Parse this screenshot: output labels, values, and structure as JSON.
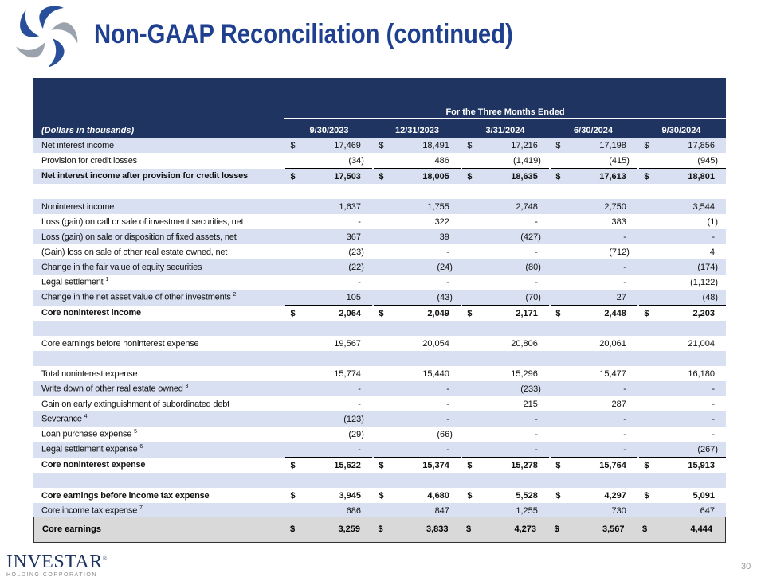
{
  "title": "Non-GAAP Reconciliation (continued)",
  "logo_text": "Investar logo",
  "header": {
    "span_title": "For the Three Months Ended",
    "units": "(Dollars in thousands)",
    "dates": [
      "9/30/2023",
      "12/31/2023",
      "3/31/2024",
      "6/30/2024",
      "9/30/2024"
    ]
  },
  "rows": [
    {
      "label": "Net interest income",
      "dollar": true,
      "values": [
        "17,469",
        "18,491",
        "17,216",
        "17,198",
        "17,856"
      ]
    },
    {
      "label": "Provision for credit losses",
      "values": [
        "(34)",
        "486",
        "(1,419)",
        "(415)",
        "(945)"
      ]
    },
    {
      "label": "Net interest income after provision for credit losses",
      "bold": true,
      "dollar": true,
      "topline": true,
      "values": [
        "17,503",
        "18,005",
        "18,635",
        "17,613",
        "18,801"
      ]
    },
    {
      "label": "",
      "values": [
        "",
        "",
        "",
        "",
        ""
      ]
    },
    {
      "label": "Noninterest income",
      "values": [
        "1,637",
        "1,755",
        "2,748",
        "2,750",
        "3,544"
      ]
    },
    {
      "label": "Loss (gain) on call or sale of investment securities, net",
      "values": [
        "-",
        "322",
        "-",
        "383",
        "(1)"
      ]
    },
    {
      "label": "Loss (gain) on sale or disposition of fixed assets, net",
      "values": [
        "367",
        "39",
        "(427)",
        "-",
        "-"
      ]
    },
    {
      "label": "(Gain) loss on sale of other real estate owned, net",
      "values": [
        "(23)",
        "-",
        "-",
        "(712)",
        "4"
      ]
    },
    {
      "label": "Change in the fair value of equity securities",
      "values": [
        "(22)",
        "(24)",
        "(80)",
        "-",
        "(174)"
      ]
    },
    {
      "label": "Legal settlement",
      "sup": "1",
      "values": [
        "-",
        "-",
        "-",
        "-",
        "(1,122)"
      ]
    },
    {
      "label": "Change in the net asset value of other investments",
      "sup": "2",
      "values": [
        "105",
        "(43)",
        "(70)",
        "27",
        "(48)"
      ]
    },
    {
      "label": "Core noninterest income",
      "bold": true,
      "dollar": true,
      "topline": true,
      "values": [
        "2,064",
        "2,049",
        "2,171",
        "2,448",
        "2,203"
      ]
    },
    {
      "label": "",
      "values": [
        "",
        "",
        "",
        "",
        ""
      ]
    },
    {
      "label": "Core earnings before noninterest expense",
      "values": [
        "19,567",
        "20,054",
        "20,806",
        "20,061",
        "21,004"
      ]
    },
    {
      "label": "",
      "values": [
        "",
        "",
        "",
        "",
        ""
      ]
    },
    {
      "label": "Total noninterest expense",
      "values": [
        "15,774",
        "15,440",
        "15,296",
        "15,477",
        "16,180"
      ]
    },
    {
      "label": "Write down of other real estate owned",
      "sup": "3",
      "values": [
        "-",
        "-",
        "(233)",
        "-",
        "-"
      ]
    },
    {
      "label": "Gain on early extinguishment of subordinated debt",
      "values": [
        "-",
        "-",
        "215",
        "287",
        "-"
      ]
    },
    {
      "label": "Severance",
      "sup": "4",
      "values": [
        "(123)",
        "-",
        "-",
        "-",
        "-"
      ]
    },
    {
      "label": "Loan purchase expense",
      "sup": "5",
      "values": [
        "(29)",
        "(66)",
        "-",
        "-",
        "-"
      ]
    },
    {
      "label": "Legal settlement expense",
      "sup": "6",
      "values": [
        "-",
        "-",
        "-",
        "-",
        "(267)"
      ]
    },
    {
      "label": "Core noninterest expense",
      "bold": true,
      "dollar": true,
      "topline": true,
      "values": [
        "15,622",
        "15,374",
        "15,278",
        "15,764",
        "15,913"
      ]
    },
    {
      "label": "",
      "values": [
        "",
        "",
        "",
        "",
        ""
      ]
    },
    {
      "label": "Core earnings before income tax expense",
      "bold": true,
      "dollar": true,
      "values": [
        "3,945",
        "4,680",
        "5,528",
        "4,297",
        "5,091"
      ]
    },
    {
      "label": "Core income tax expense",
      "sup": "7",
      "values": [
        "686",
        "847",
        "1,255",
        "730",
        "647"
      ]
    }
  ],
  "core_earnings": {
    "label": "Core earnings",
    "dollar": "$",
    "values": [
      "3,259",
      "3,833",
      "4,273",
      "3,567",
      "4,444"
    ]
  },
  "footer": {
    "brand": "INVESTAR",
    "registered": "®",
    "sub": "HOLDING CORPORATION",
    "page": "30"
  },
  "colors": {
    "navy": "#1f3461",
    "title_blue": "#1f3f8f",
    "stripe": "#d9e0f1",
    "total_box": "#d9d9d9"
  }
}
